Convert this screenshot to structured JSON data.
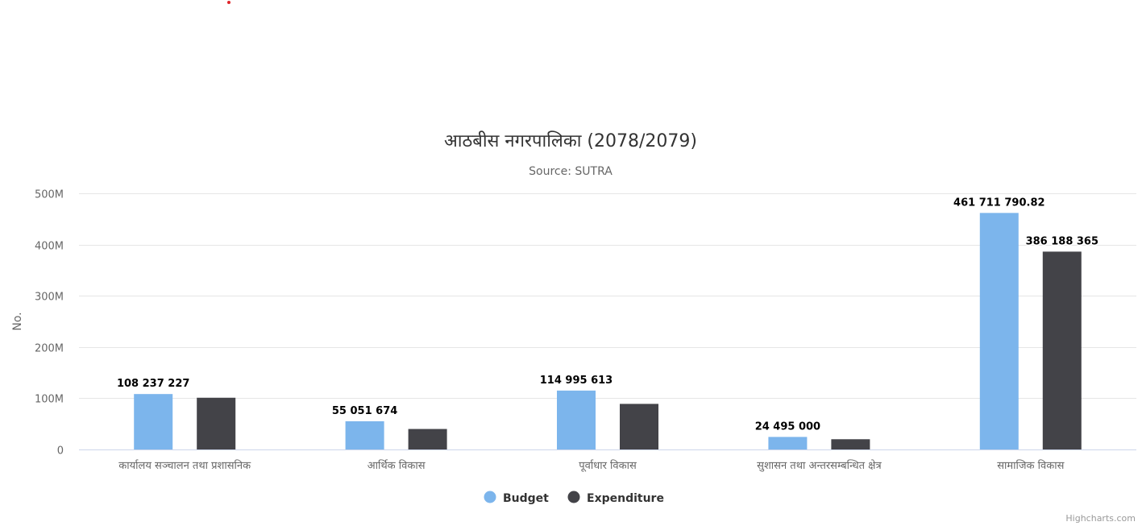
{
  "chart_data": {
    "type": "bar",
    "title": "आठबीस नगरपालिका (2078/2079)",
    "subtitle": "Source: SUTRA",
    "xlabel": "",
    "ylabel": "No.",
    "ylim": [
      0,
      500000000
    ],
    "yticks": [
      {
        "value": 0,
        "label": "0"
      },
      {
        "value": 100000000,
        "label": "100M"
      },
      {
        "value": 200000000,
        "label": "200M"
      },
      {
        "value": 300000000,
        "label": "300M"
      },
      {
        "value": 400000000,
        "label": "400M"
      },
      {
        "value": 500000000,
        "label": "500M"
      }
    ],
    "grid": true,
    "legend_position": "bottom-center",
    "categories": [
      "कार्यालय सञ्चालन तथा प्रशासनिक",
      "आर्थिक विकास",
      "पूर्वाधार विकास",
      "सुशासन तथा अन्तरसम्बन्धित क्षेत्र",
      "सामाजिक विकास"
    ],
    "series": [
      {
        "name": "Budget",
        "color": "#7cb5ec",
        "values": [
          108237227,
          55051674,
          114995613,
          24495000,
          461711790.82
        ],
        "data_labels": [
          "108 237 227",
          "55 051 674",
          "114 995 613",
          "24 495 000",
          "461 711 790.82"
        ]
      },
      {
        "name": "Expenditure",
        "color": "#434348",
        "values": [
          101000000,
          40000000,
          89000000,
          20000000,
          386188365
        ],
        "data_labels": [
          "",
          "",
          "",
          "",
          "386 188 365"
        ]
      }
    ]
  },
  "credits": "Highcharts.com"
}
